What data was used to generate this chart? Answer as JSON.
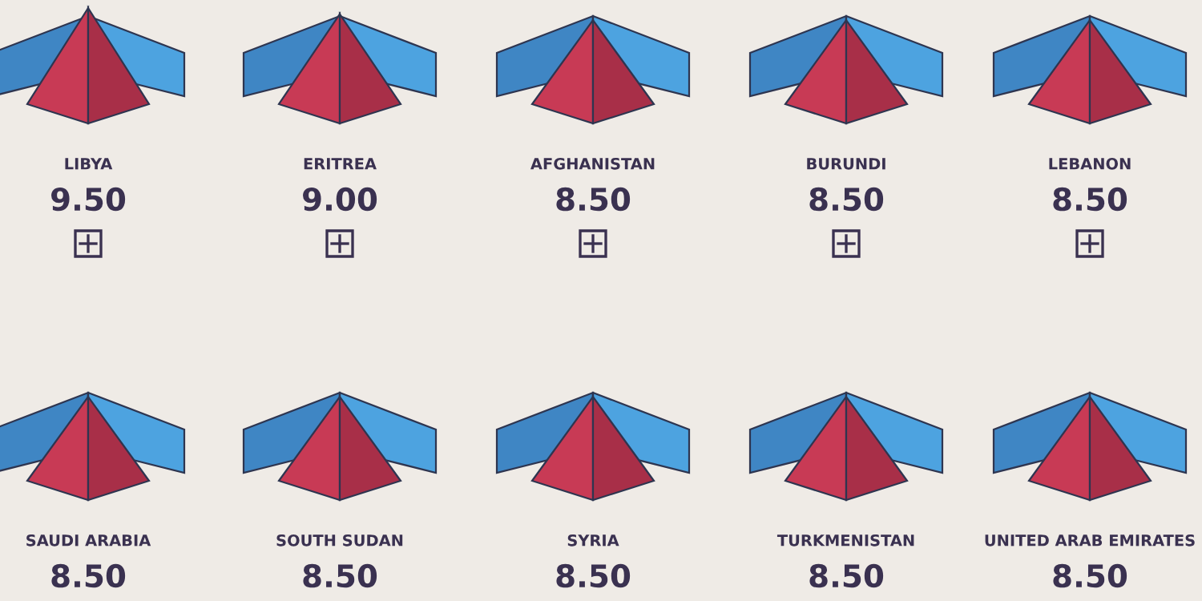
{
  "chart_data": {
    "type": "other",
    "categories": [
      "LIBYA",
      "ERITREA",
      "AFGHANISTAN",
      "BURUNDI",
      "LEBANON",
      "SAUDI ARABIA",
      "SOUTH SUDAN",
      "SYRIA",
      "TURKMENISTAN",
      "UNITED ARAB EMIRATES"
    ],
    "values": [
      9.5,
      9.0,
      8.5,
      8.5,
      8.5,
      8.5,
      8.5,
      8.5,
      8.5,
      8.5
    ],
    "value_labels": [
      "9.50",
      "9.00",
      "8.50",
      "8.50",
      "8.50",
      "8.50",
      "8.50",
      "8.50",
      "8.50",
      "8.50"
    ]
  }
}
